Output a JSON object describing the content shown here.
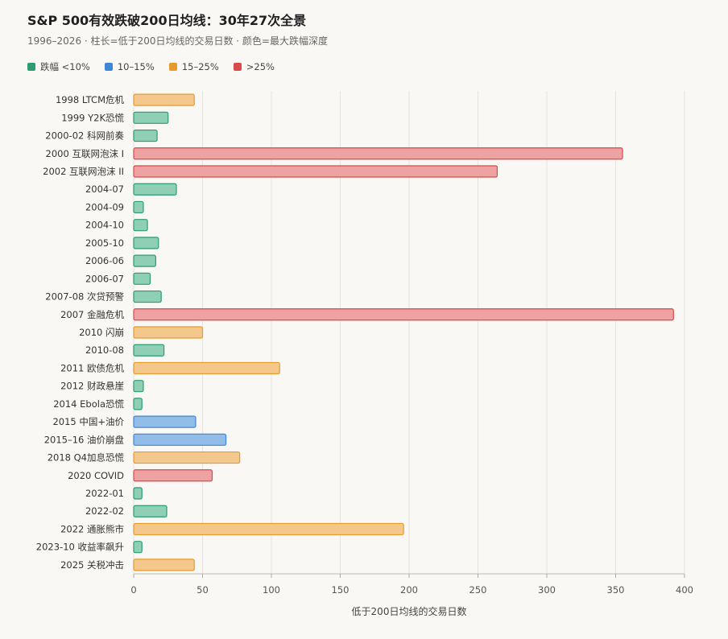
{
  "chart_data": {
    "type": "bar",
    "orientation": "horizontal",
    "title": "S&P 500有效跌破200日均线：30年27次全景",
    "subtitle": "1996–2026 · 柱长=低于200日均线的交易日数 · 颜色=最大跌幅深度",
    "xlabel": "低于200日均线的交易日数",
    "ylabel": "",
    "xlim": [
      0,
      400
    ],
    "xticks": [
      0,
      50,
      100,
      150,
      200,
      250,
      300,
      350,
      400
    ],
    "grid": true,
    "legend_position": "top-left",
    "legend": [
      {
        "key": "lt10",
        "label": "跌幅 <10%",
        "color": "#2e9b72",
        "fill": "#8fcfb5"
      },
      {
        "key": "10_15",
        "label": "10–15%",
        "color": "#3f86d4",
        "fill": "#93bde9"
      },
      {
        "key": "15_25",
        "label": "15–25%",
        "color": "#e79a2d",
        "fill": "#f4c88c"
      },
      {
        "key": "gt25",
        "label": ">25%",
        "color": "#d94a4a",
        "fill": "#eea2a2"
      }
    ],
    "categories": [
      "1998 LTCM危机",
      "1999 Y2K恐慌",
      "2000-02 科网前奏",
      "2000 互联网泡沫 I",
      "2002 互联网泡沫 II",
      "2004-07",
      "2004-09",
      "2004-10",
      "2005-10",
      "2006-06",
      "2006-07",
      "2007-08 次贷预警",
      "2007 金融危机",
      "2010 闪崩",
      "2010-08",
      "2011 欧债危机",
      "2012 财政悬崖",
      "2014 Ebola恐慌",
      "2015 中国+油价",
      "2015–16 油价崩盘",
      "2018 Q4加息恐慌",
      "2020 COVID",
      "2022-01",
      "2022-02",
      "2022 通胀熊市",
      "2023-10 收益率飙升",
      "2025 关税冲击"
    ],
    "values": [
      44,
      25,
      17,
      355,
      264,
      31,
      7,
      10,
      18,
      16,
      12,
      20,
      392,
      50,
      22,
      106,
      7,
      6,
      45,
      67,
      77,
      57,
      6,
      24,
      196,
      6,
      44
    ],
    "severity": [
      "15_25",
      "lt10",
      "lt10",
      "gt25",
      "gt25",
      "lt10",
      "lt10",
      "lt10",
      "lt10",
      "lt10",
      "lt10",
      "lt10",
      "gt25",
      "15_25",
      "lt10",
      "15_25",
      "lt10",
      "lt10",
      "10_15",
      "10_15",
      "15_25",
      "gt25",
      "lt10",
      "lt10",
      "15_25",
      "lt10",
      "15_25"
    ]
  }
}
